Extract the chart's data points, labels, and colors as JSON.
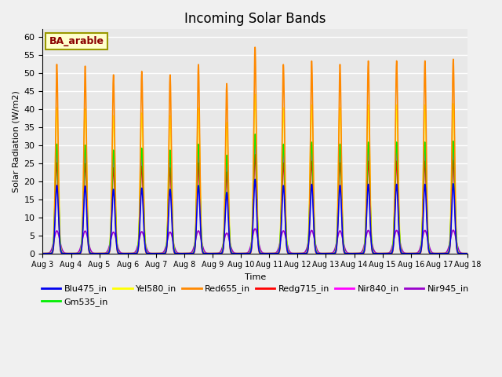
{
  "title": "Incoming Solar Bands",
  "xlabel": "Time",
  "ylabel": "Solar Radiation (W/m2)",
  "annotation": "BA_arable",
  "ylim": [
    0,
    62
  ],
  "yticks": [
    0,
    5,
    10,
    15,
    20,
    25,
    30,
    35,
    40,
    45,
    50,
    55,
    60
  ],
  "start_day": 3,
  "end_day": 18,
  "n_days": 15,
  "series_order": [
    "Blu475_in",
    "Gm535_in",
    "Yel580_in",
    "Red655_in",
    "Redg715_in",
    "Nir840_in",
    "Nir945_in"
  ],
  "series": {
    "Blu475_in": {
      "color": "#0000ee",
      "peak_scale": 0.345,
      "lw": 1.2,
      "sigma": 0.055
    },
    "Gm535_in": {
      "color": "#00ee00",
      "peak_scale": 0.555,
      "lw": 1.2,
      "sigma": 0.055
    },
    "Yel580_in": {
      "color": "#ffff00",
      "peak_scale": 0.74,
      "lw": 1.2,
      "sigma": 0.055
    },
    "Red655_in": {
      "color": "#ff8800",
      "peak_scale": 0.96,
      "lw": 1.2,
      "sigma": 0.045
    },
    "Redg715_in": {
      "color": "#ff0000",
      "peak_scale": 0.46,
      "lw": 1.2,
      "sigma": 0.055
    },
    "Nir840_in": {
      "color": "#ff00ff",
      "peak_scale": 0.5,
      "lw": 1.2,
      "sigma": 0.055
    },
    "Nir945_in": {
      "color": "#9900cc",
      "peak_scale": 0.115,
      "lw": 1.2,
      "sigma": 0.1
    }
  },
  "daily_peaks_Red655": [
    54.5,
    54.0,
    51.5,
    52.5,
    51.5,
    54.5,
    49.0,
    59.5,
    54.5,
    55.5,
    54.5,
    55.5,
    55.5,
    55.5,
    56.0
  ],
  "background_color": "#e8e8e8",
  "grid_color": "#ffffff",
  "fig_facecolor": "#f0f0f0",
  "legend_fontsize": 8,
  "title_fontsize": 12,
  "pts_per_day": 200
}
